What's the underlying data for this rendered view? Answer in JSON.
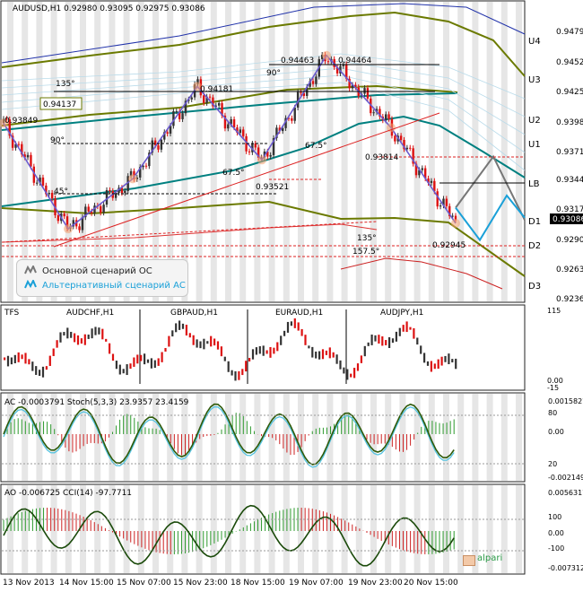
{
  "main": {
    "header": "AUDUSD,H1  0.92980 0.93095 0.92975 0.93086",
    "price_badge": "0.93086",
    "price_levels": [
      "0.94791",
      "0.94521",
      "0.94251",
      "0.93981",
      "0.93711",
      "0.93441",
      "0.93171",
      "0.92906",
      "0.92636",
      "0.92366"
    ],
    "level_tags": [
      "U4",
      "U3",
      "U2",
      "U1",
      "LB",
      "D1",
      "D2",
      "D3"
    ],
    "price_annotations": [
      "0.94463",
      "0.94464",
      "0.94181",
      "0.94137",
      "0.93849",
      "0.93814",
      "0.93521",
      "0.92945"
    ],
    "angle_annotations": [
      "135°",
      "90°",
      "90°",
      "45°",
      "67.5°",
      "67.5°",
      "135°",
      "157.5°"
    ],
    "legend": {
      "basic_label": "Основной сценарий ОС",
      "alt_label": "Альтернативный сценарий АС"
    },
    "colors": {
      "basic": "#777777",
      "alternative": "#1aa0d8",
      "wave": "#6a5acd",
      "bullish": "#333333",
      "bearish": "#dd1111",
      "channel": "#6b7a00",
      "regression": "#008080"
    }
  },
  "tfs_panel": {
    "label": "TFS",
    "symbols": [
      "AUDCHF,H1",
      "GBPAUD,H1",
      "EURAUD,H1",
      "AUDJPY,H1"
    ],
    "scale": [
      "115",
      "0.00",
      "-15"
    ]
  },
  "ac_panel": {
    "header": "AC -0.0003791  Stoch(5,3,3) 23.9357 23.4159",
    "scale": [
      "0.0015827",
      "80",
      "0.00",
      "20",
      "-0.0021491"
    ]
  },
  "ao_panel": {
    "header": "AO -0.006725  CCI(14) -97.7711",
    "scale": [
      "0.0056317",
      "100",
      "0.00",
      "-100",
      "-0.0073129"
    ]
  },
  "time_axis": [
    "13 Nov 2013",
    "14 Nov 15:00",
    "15 Nov 07:00",
    "15 Nov 23:00",
    "18 Nov 15:00",
    "19 Nov 07:00",
    "19 Nov 23:00",
    "20 Nov 15:00"
  ],
  "watermark": "alpari",
  "chart_data": {
    "type": "line",
    "title": "AUDUSD,H1",
    "ylim": [
      0.9224,
      0.9495
    ],
    "series": [
      {
        "name": "AUDUSD,H1",
        "x": [
          "13 Nov 2013",
          "14 Nov 15:00",
          "15 Nov 07:00",
          "15 Nov 23:00",
          "18 Nov 15:00",
          "19 Nov 07:00",
          "19 Nov 23:00",
          "20 Nov 15:00"
        ],
        "values": [
          0.9385,
          0.929,
          0.9335,
          0.9418,
          0.9352,
          0.9446,
          0.9381,
          0.9295
        ]
      }
    ],
    "basic_scenario": [
      0.9309,
      0.9355,
      0.9298
    ],
    "alternative_scenario": [
      0.9309,
      0.928,
      0.932,
      0.93
    ]
  }
}
